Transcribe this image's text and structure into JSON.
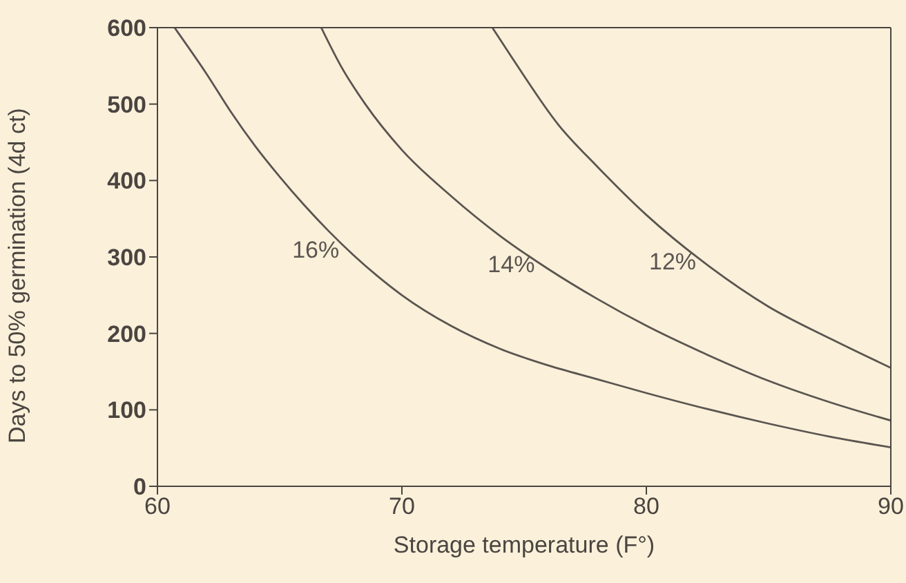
{
  "chart_data": {
    "type": "line",
    "xlabel": "Storage temperature (F°)",
    "ylabel": "Days to 50% germination (4d ct)",
    "xlim": [
      60,
      90
    ],
    "xticks": [
      60,
      70,
      80,
      90
    ],
    "ylim": [
      0,
      600
    ],
    "yticks": [
      0,
      100,
      200,
      300,
      400,
      500,
      600
    ],
    "marker": "none",
    "line_style": "solid",
    "series": [
      {
        "name": "16%",
        "color": "#5a5550",
        "x": [
          60.7,
          62,
          63,
          64,
          65,
          66,
          67,
          68,
          69,
          70,
          72,
          74,
          76,
          78,
          80,
          82.5,
          85,
          87.5,
          90
        ],
        "values": [
          600,
          540,
          490,
          445,
          405,
          368,
          334,
          303,
          275,
          250,
          210,
          180,
          158,
          140,
          122,
          101,
          82,
          65,
          51
        ]
      },
      {
        "name": "14%",
        "color": "#5a5550",
        "x": [
          66.7,
          67.5,
          68.5,
          70,
          72,
          74,
          76,
          78,
          80,
          82.5,
          85,
          87.5,
          90
        ],
        "values": [
          600,
          550,
          500,
          440,
          380,
          328,
          284,
          245,
          210,
          172,
          138,
          110,
          86
        ]
      },
      {
        "name": "12%",
        "color": "#5a5550",
        "x": [
          73.7,
          74.5,
          76.4,
          78,
          80,
          82.6,
          85,
          87.6,
          90
        ],
        "values": [
          600,
          561,
          473,
          418,
          355,
          287,
          235,
          192,
          155
        ]
      }
    ]
  }
}
